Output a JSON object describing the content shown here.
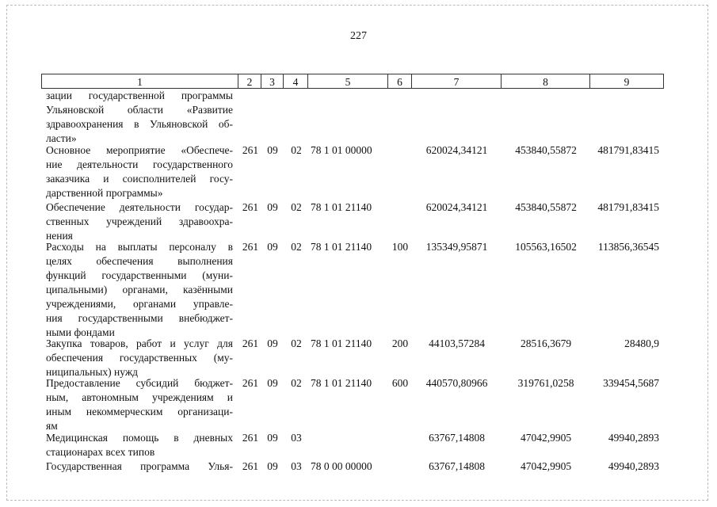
{
  "page_number": "227",
  "header": [
    "1",
    "2",
    "3",
    "4",
    "5",
    "6",
    "7",
    "8",
    "9"
  ],
  "rows": [
    {
      "name_lines": [
        "зации государственной программы",
        "Ульяновской области «Развитие",
        "здравоохранения в Ульяновской об-",
        "ласти»"
      ],
      "c2": "",
      "c3": "",
      "c4": "",
      "c5": "",
      "c6": "",
      "c7": "",
      "c8": "",
      "c9": ""
    },
    {
      "name_lines": [
        "Основное мероприятие «Обеспече-",
        "ние деятельности государственного",
        "заказчика и соисполнителей госу-",
        "дарственной программы»"
      ],
      "c2": "261",
      "c3": "09",
      "c4": "02",
      "c5": "78 1 01 00000",
      "c6": "",
      "c7": "620024,34121",
      "c8": "453840,55872",
      "c9": "481791,83415"
    },
    {
      "name_lines": [
        "Обеспечение деятельности государ-",
        "ственных учреждений здравоохра-",
        "нения"
      ],
      "c2": "261",
      "c3": "09",
      "c4": "02",
      "c5": "78 1 01 21140",
      "c6": "",
      "c7": "620024,34121",
      "c8": "453840,55872",
      "c9": "481791,83415"
    },
    {
      "name_lines": [
        "Расходы на выплаты персоналу в",
        "целях обеспечения выполнения",
        "функций государственными (муни-",
        "ципальными) органами, казёнными",
        "учреждениями, органами управле-",
        "ния государственными внебюджет-",
        "ными фондами"
      ],
      "c2": "261",
      "c3": "09",
      "c4": "02",
      "c5": "78 1 01 21140",
      "c6": "100",
      "c7": "135349,95871",
      "c8": "105563,16502",
      "c9": "113856,36545"
    },
    {
      "name_lines": [
        "Закупка товаров, работ и услуг для",
        "обеспечения государственных (му-",
        "ниципальных) нужд"
      ],
      "c2": "261",
      "c3": "09",
      "c4": "02",
      "c5": "78 1 01 21140",
      "c6": "200",
      "c7": "44103,57284",
      "c8": "28516,3679",
      "c9": "28480,9"
    },
    {
      "name_lines": [
        "Предоставление субсидий бюджет-",
        "ным, автономным учреждениям и",
        "иным некоммерческим организаци-",
        "ям"
      ],
      "c2": "261",
      "c3": "09",
      "c4": "02",
      "c5": "78 1 01 21140",
      "c6": "600",
      "c7": "440570,80966",
      "c8": "319761,0258",
      "c9": "339454,5687"
    },
    {
      "name_lines": [
        "Медицинская помощь в дневных",
        "стационарах всех типов"
      ],
      "c2": "261",
      "c3": "09",
      "c4": "03",
      "c5": "",
      "c6": "",
      "c7": "63767,14808",
      "c8": "47042,9905",
      "c9": "49940,2893"
    },
    {
      "name_lines": [
        "Государственная программа Улья-"
      ],
      "c2": "261",
      "c3": "09",
      "c4": "03",
      "c5": "78 0 00 00000",
      "c6": "",
      "c7": "63767,14808",
      "c8": "47042,9905",
      "c9": "49940,2893"
    }
  ]
}
